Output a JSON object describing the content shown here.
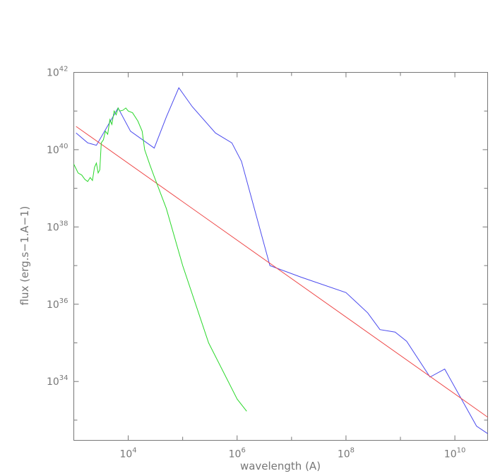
{
  "chart_data": {
    "type": "line",
    "xlabel": "wavelength (A)",
    "ylabel": "flux (erg.s−1.A−1)",
    "xscale": "log",
    "yscale": "log",
    "xlim": [
      1000,
      40000000000
    ],
    "ylim": [
      3e+32,
      1e+42
    ],
    "grid": false,
    "legend": "none",
    "x_tick_labels": [
      {
        "value": 10000,
        "base": "10",
        "exp": "4"
      },
      {
        "value": 1000000,
        "base": "10",
        "exp": "6"
      },
      {
        "value": 100000000,
        "base": "10",
        "exp": "8"
      },
      {
        "value": 10000000000,
        "base": "10",
        "exp": "10"
      }
    ],
    "y_tick_labels": [
      {
        "value": 1e+34,
        "base": "10",
        "exp": "34"
      },
      {
        "value": 1e+36,
        "base": "10",
        "exp": "36"
      },
      {
        "value": 1e+38,
        "base": "10",
        "exp": "38"
      },
      {
        "value": 1e+40,
        "base": "10",
        "exp": "40"
      },
      {
        "value": 1e+42,
        "base": "10",
        "exp": "42"
      }
    ],
    "series": [
      {
        "color": "#4a4aee",
        "x": [
          1100,
          1800,
          2600,
          6500,
          11000,
          30000,
          50000,
          85000,
          150000,
          400000,
          800000,
          1200000,
          4000000,
          15000000,
          100000000,
          250000000,
          420000000,
          800000000,
          1300000000,
          3500000000,
          6500000000,
          25000000000,
          40000000000
        ],
        "y": [
          2.7e+40,
          1.5e+40,
          1.3e+40,
          1.2e+41,
          3e+40,
          1.1e+40,
          7e+40,
          4e+41,
          1.3e+41,
          2.7e+40,
          1.5e+40,
          5e+39,
          1e+37,
          5e+36,
          2e+36,
          6e+35,
          2.2e+35,
          1.9e+35,
          1.1e+35,
          1.3e+34,
          2.1e+34,
          7e+32,
          4.5e+32
        ]
      },
      {
        "color": "#ee4a4a",
        "x": [
          1100,
          40000000000
        ],
        "y": [
          4e+40,
          1.2e+33
        ]
      },
      {
        "color": "#2ad82a",
        "x": [
          1000,
          1200,
          1400,
          1600,
          1800,
          2000,
          2200,
          2400,
          2600,
          2800,
          3000,
          3200,
          3500,
          3800,
          4200,
          4600,
          5000,
          5500,
          6000,
          6500,
          7000,
          8000,
          9000,
          10000,
          12000,
          15000,
          18000,
          20000,
          25000,
          30000,
          50000,
          100000,
          300000,
          1000000,
          1500000
        ],
        "y": [
          4.2e+39,
          2.5e+39,
          2.2e+39,
          1.7e+39,
          1.5e+39,
          1.9e+39,
          1.6e+39,
          3.5e+39,
          4.5e+39,
          2.5e+39,
          3e+39,
          1.5e+40,
          1.8e+40,
          3e+40,
          2.5e+40,
          6e+40,
          4.5e+40,
          1e+41,
          8e+40,
          1.2e+41,
          1e+41,
          1.05e+41,
          1.2e+41,
          1e+41,
          9e+40,
          5.5e+40,
          3e+40,
          1e+40,
          4e+39,
          2e+39,
          3e+38,
          1e+37,
          1e+35,
          3.5e+33,
          1.7e+33
        ]
      }
    ]
  }
}
